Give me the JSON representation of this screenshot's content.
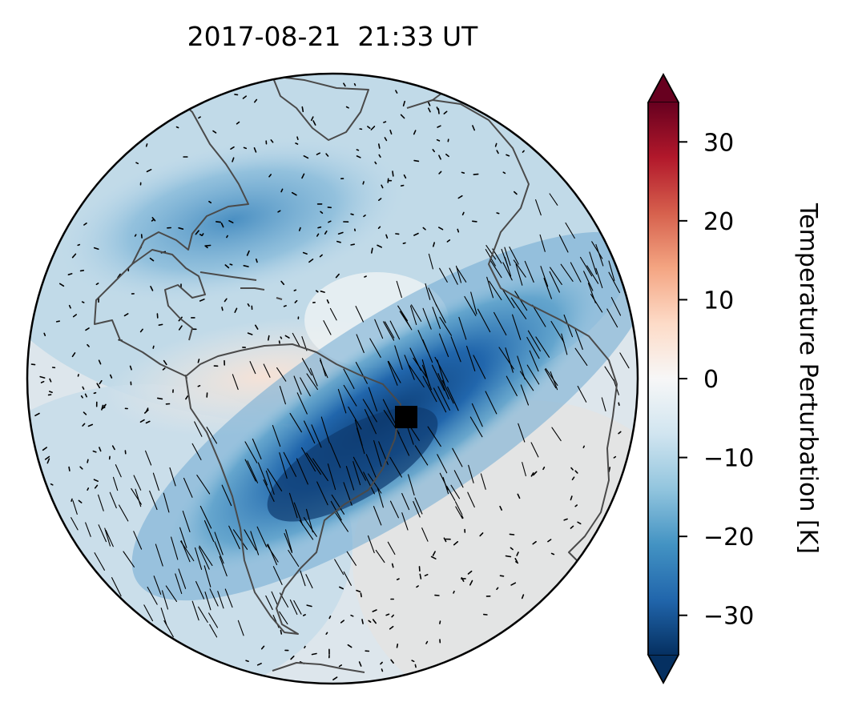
{
  "title": "2017-08-21  21:33 UT",
  "colorbar": {
    "label": "Temperature Perturbation [K]",
    "range": [
      -35,
      35
    ],
    "ticks": [
      30,
      20,
      10,
      0,
      -10,
      -20,
      -30
    ],
    "tick_labels": [
      "30",
      "20",
      "10",
      "0",
      "−10",
      "−20",
      "−30"
    ],
    "colormap": "RdBu_r",
    "colors": [
      "#053061",
      "#2166ac",
      "#4393c3",
      "#92c5de",
      "#d1e5f0",
      "#f7f7f7",
      "#fddbc7",
      "#f4a582",
      "#d6604d",
      "#b2182b",
      "#67001f"
    ],
    "extend": "both"
  },
  "map": {
    "projection": "orthographic",
    "features": [
      "coastlines",
      "wind-vectors",
      "perturbation-field"
    ],
    "marker": "black-square"
  }
}
